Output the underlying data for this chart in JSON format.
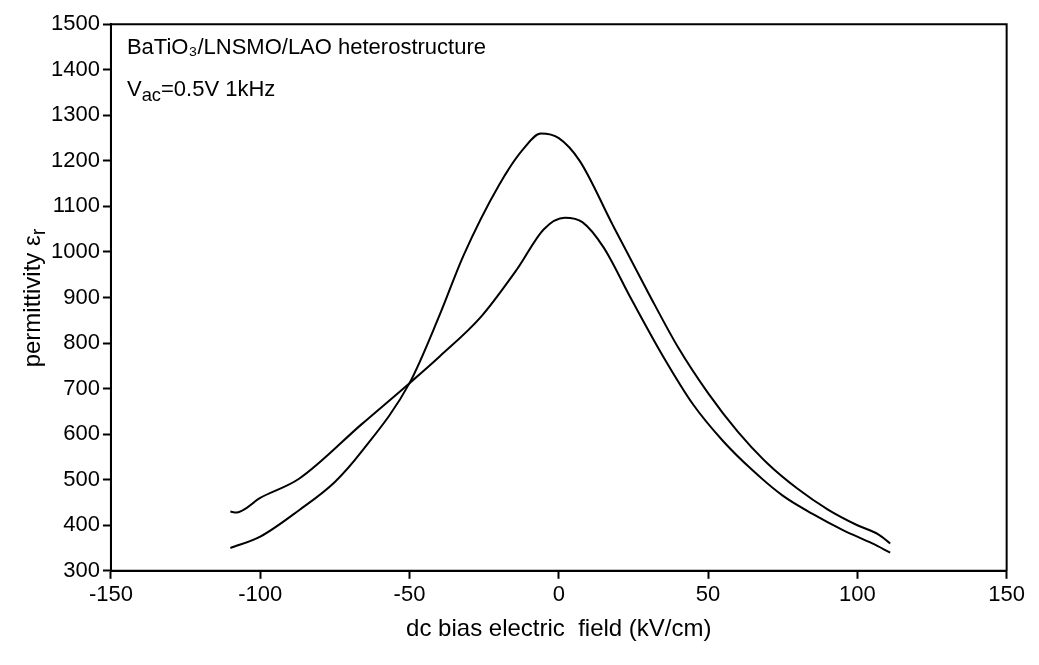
{
  "chart_data": {
    "type": "line",
    "xlabel": "dc bias electric  field (kV/cm)",
    "ylabel": "permittivity ε$_{r}$",
    "annotations": [
      "BaTiO₃/LNSMO/LAO heterostructure",
      "V$_{ac}$=0.5V 1kHz"
    ],
    "xlim": [
      -150,
      150
    ],
    "xticks": [
      -150,
      -100,
      -50,
      0,
      50,
      100,
      150
    ],
    "ylim": [
      300,
      1500
    ],
    "yticks": [
      300,
      400,
      500,
      600,
      700,
      800,
      900,
      1000,
      1100,
      1200,
      1300,
      1400,
      1500
    ],
    "grid": false,
    "marker": "none",
    "line_style": "solid",
    "series": [
      {
        "color": "#000000",
        "x": [
          -110,
          -100,
          -87,
          -75,
          -66,
          -50,
          -40,
          -32,
          -20,
          -12,
          -6,
          0,
          7,
          18,
          30,
          40,
          50,
          60,
          70,
          80,
          90,
          100,
          107,
          111
        ],
        "values": [
          350,
          375,
          433,
          495,
          562,
          712,
          860,
          991,
          1147,
          1225,
          1260,
          1250,
          1200,
          1060,
          910,
          790,
          690,
          605,
          535,
          480,
          435,
          400,
          380,
          360
        ]
      },
      {
        "color": "#000000",
        "x": [
          -110,
          -108,
          -100,
          -87,
          -66,
          -50,
          -40,
          -26,
          -14,
          -5,
          2,
          8,
          15,
          24,
          35,
          45,
          55,
          65,
          75,
          85,
          95,
          105,
          111
        ],
        "values": [
          430,
          428,
          460,
          502,
          622,
          712,
          770,
          858,
          962,
          1050,
          1075,
          1065,
          1010,
          900,
          770,
          665,
          585,
          520,
          465,
          425,
          390,
          360,
          340
        ]
      }
    ]
  }
}
